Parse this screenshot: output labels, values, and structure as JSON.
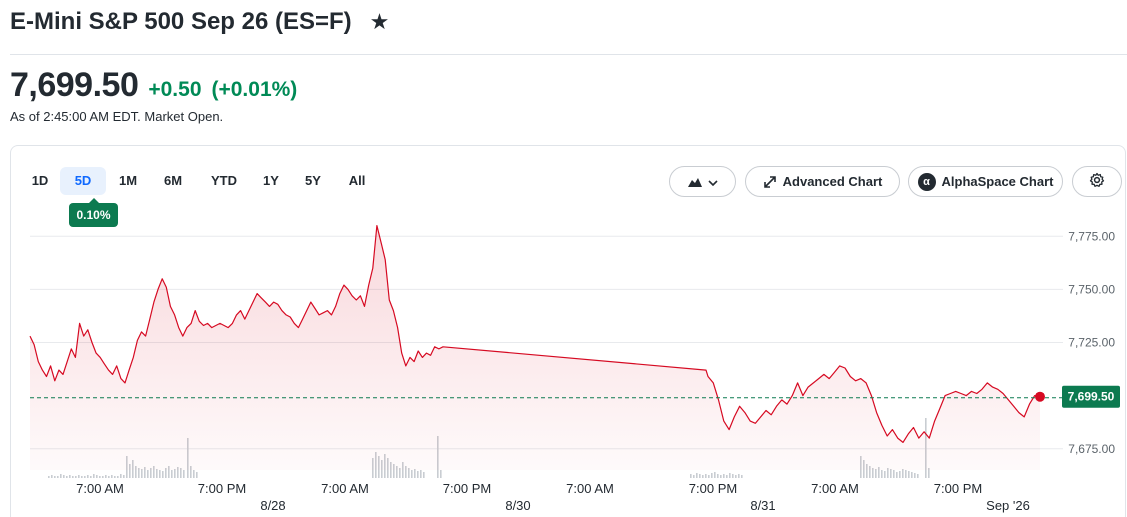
{
  "header": {
    "title": "E-Mini S&P 500 Sep 26 (ES=F)",
    "star_icon": "star-icon"
  },
  "quote": {
    "price": "7,699.50",
    "change": "+0.50",
    "change_percent": "(+0.01%)",
    "as_of": "As of 2:45:00 AM EDT. Market Open.",
    "change_color": "#008a56"
  },
  "toolbar": {
    "ranges": [
      "1D",
      "5D",
      "1M",
      "6M",
      "YTD",
      "1Y",
      "5Y",
      "All"
    ],
    "active_range": "5D",
    "range_change_badge": "0.10%",
    "chart_type_icon": "mountain-chart-icon",
    "chart_type_chevron": "chevron-down-icon",
    "advanced_chart_label": "Advanced Chart",
    "alphaspace_chart_label": "AlphaSpace Chart",
    "alphaspace_logo_text": "α",
    "settings_icon": "gear-icon"
  },
  "chart_data": {
    "type": "area",
    "title": "",
    "xlabel": "",
    "ylabel": "",
    "ylim": [
      7665,
      7785
    ],
    "y_ticks": [
      "7,775.00",
      "7,750.00",
      "7,725.00",
      "7,700.00",
      "7,675.00"
    ],
    "y_tick_values": [
      7775,
      7750,
      7725,
      7700,
      7675
    ],
    "x_time_labels": [
      "7:00 AM",
      "7:00 PM",
      "7:00 AM",
      "7:00 PM",
      "7:00 AM",
      "7:00 PM",
      "7:00 AM",
      "7:00 PM"
    ],
    "x_date_labels": [
      "8/28",
      "8/30",
      "8/31",
      "Sep '26"
    ],
    "grid": true,
    "current_price_label": "7,699.50",
    "current_value": 7699.5,
    "previous_close": 7699,
    "line_color": "#d60a22",
    "label_color": "#0c7a50",
    "series": [
      {
        "values": [
          7728,
          7724,
          7716,
          7712,
          7709,
          7714,
          7707,
          7712,
          7710,
          7716,
          7722,
          7718,
          7734,
          7728,
          7731,
          7725,
          7720,
          7718,
          7715,
          7712,
          7710,
          7714,
          7708,
          7706,
          7712,
          7718,
          7726,
          7730,
          7728,
          7736,
          7744,
          7750,
          7755,
          7751,
          7742,
          7738,
          7732,
          7728,
          7732,
          7734,
          7740,
          7735,
          7733,
          7734,
          7732,
          7733,
          7734,
          7733,
          7732,
          7734,
          7738,
          7740,
          7736,
          7740,
          7744,
          7748,
          7746,
          7744,
          7742,
          7744,
          7743,
          7740,
          7738,
          7737,
          7734,
          7732,
          7736,
          7740,
          7744,
          7741,
          7738,
          7739,
          7740,
          7738,
          7742,
          7748,
          7752,
          7750,
          7747,
          7745,
          7747,
          7742,
          7752,
          7760,
          7780,
          7772,
          7764,
          7745,
          7740,
          7732,
          7720,
          7714,
          7718,
          7716,
          7721,
          7718,
          7720,
          7719,
          7723,
          7722,
          7723
        ],
        "values_after_gap": [
          7709,
          7706,
          7698,
          7688,
          7684,
          7690,
          7695,
          7692,
          7688,
          7687,
          7690,
          7693,
          7691,
          7695,
          7698,
          7696,
          7700,
          7706,
          7700,
          7704,
          7706,
          7708,
          7710,
          7708,
          7711,
          7714,
          7713,
          7709,
          7707,
          7708,
          7706,
          7700,
          7692,
          7686,
          7681,
          7684,
          7680,
          7678,
          7682,
          7685,
          7680,
          7683,
          7680,
          7688,
          7694,
          7700,
          7701,
          7702,
          7701,
          7700,
          7702,
          7701,
          7703,
          7706,
          7704,
          7703,
          7701,
          7698,
          7695,
          7692,
          7690,
          7696,
          7700,
          7699.5
        ],
        "gap_start": 7722,
        "gap_end": 7712
      }
    ],
    "volume_bars_visible": true
  }
}
